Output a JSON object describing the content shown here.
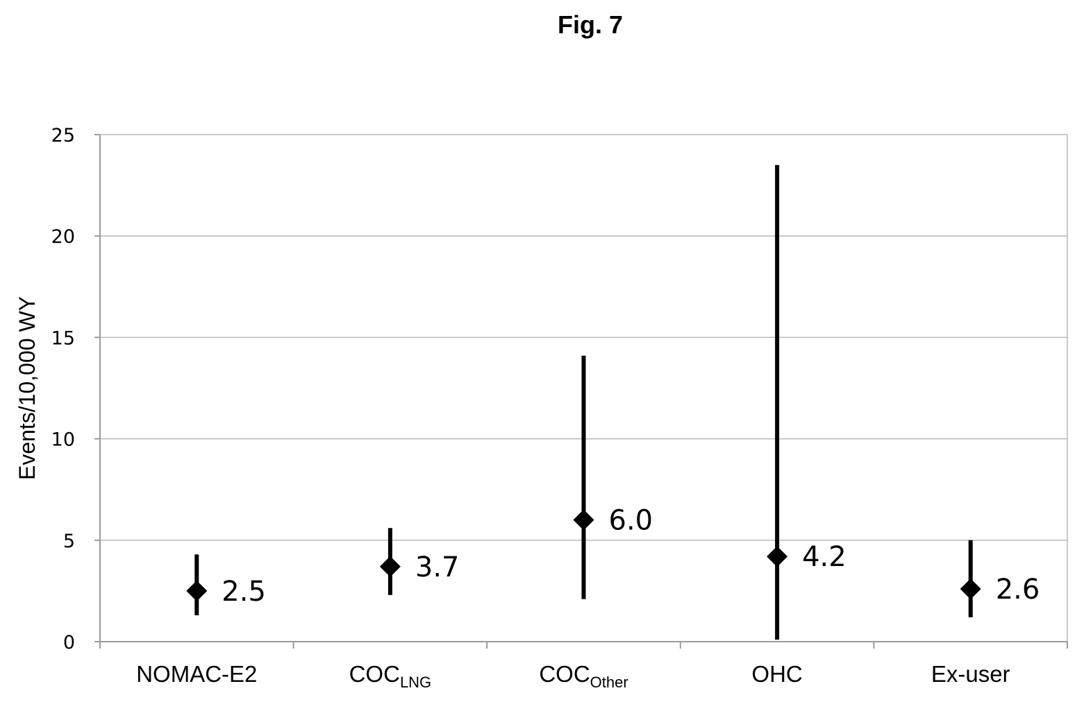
{
  "figure": {
    "title": "Fig. 7"
  },
  "chart_data": {
    "type": "scatter",
    "title": "",
    "xlabel": "",
    "ylabel": "Events/10,000 WY",
    "ylim": [
      0,
      25
    ],
    "yticks": [
      "0",
      "5",
      "10",
      "15",
      "20",
      "25"
    ],
    "grid": true,
    "legend": "none",
    "categories": [
      {
        "main": "NOMAC-E2",
        "sub": ""
      },
      {
        "main": "COC",
        "sub": "LNG"
      },
      {
        "main": "COC",
        "sub": "Other"
      },
      {
        "main": "OHC",
        "sub": ""
      },
      {
        "main": "Ex-user",
        "sub": ""
      }
    ],
    "series": [
      {
        "values": [
          2.5,
          3.7,
          6.0,
          4.2,
          2.6
        ],
        "lower": [
          1.3,
          2.3,
          2.1,
          0.1,
          1.2
        ],
        "upper": [
          4.3,
          5.6,
          14.1,
          23.5,
          5.0
        ],
        "labels": [
          "2.5",
          "3.7",
          "6.0",
          "4.2",
          "2.6"
        ]
      }
    ],
    "colors": {
      "marker": "#000000",
      "errorbar": "#000000",
      "grid": "#b8b8b8",
      "axis": "#9a9a9a"
    }
  }
}
